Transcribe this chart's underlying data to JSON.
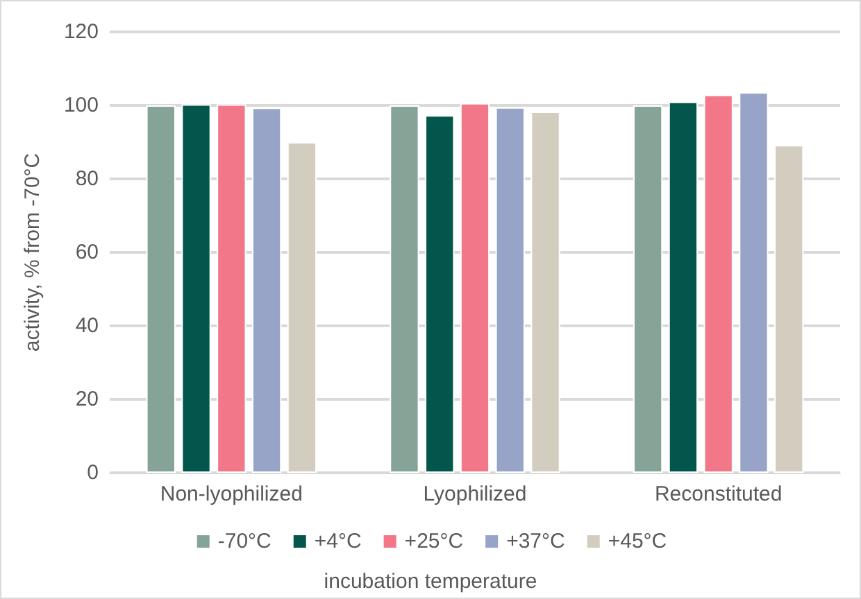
{
  "chart_data": {
    "type": "bar",
    "categories": [
      "Non-lyophilized",
      "Lyophilized",
      "Reconstituted"
    ],
    "series": [
      {
        "name": "-70°C",
        "color": "#86a398",
        "values": [
          100,
          100,
          100
        ]
      },
      {
        "name": "+4°C",
        "color": "#02564b",
        "values": [
          100.3,
          97.3,
          101
        ]
      },
      {
        "name": "+25°C",
        "color": "#f27788",
        "values": [
          100.3,
          100.6,
          102.9
        ]
      },
      {
        "name": "+37°C",
        "color": "#98a4c7",
        "values": [
          99.4,
          99.5,
          103.6
        ]
      },
      {
        "name": "+45°C",
        "color": "#d3cdbf",
        "values": [
          90,
          98.3,
          89.2
        ]
      }
    ],
    "xlabel": "incubation temperature",
    "ylabel": "activity, % from -70°C",
    "ylim": [
      0,
      120
    ],
    "yticks": [
      0,
      20,
      40,
      60,
      80,
      100,
      120
    ],
    "grid": "y",
    "legend": "bottom"
  }
}
